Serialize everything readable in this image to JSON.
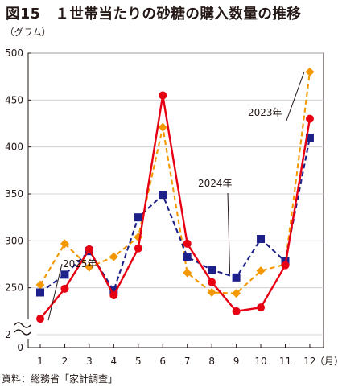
{
  "title": "図15　１世帯当たりの砂糖の購入数量の推移",
  "unit_label": "（グラム）",
  "source": "資料：総務省「家計調査」",
  "chart_data": {
    "type": "line",
    "title": "図15　１世帯当たりの砂糖の購入数量の推移",
    "ylabel": "（グラム）",
    "xlabel": "（月）",
    "x": [
      1,
      2,
      3,
      4,
      5,
      6,
      7,
      8,
      9,
      10,
      11,
      12
    ],
    "x_tick_labels": [
      "1",
      "2",
      "3",
      "4",
      "5",
      "6",
      "7",
      "8",
      "9",
      "10",
      "11",
      "12"
    ],
    "y_ticks": [
      0,
      200,
      250,
      300,
      350,
      400,
      450,
      500
    ],
    "y_tick_labels": [
      "0",
      "200",
      "250",
      "300",
      "350",
      "400",
      "450",
      "500"
    ],
    "ylim": [
      200,
      500
    ],
    "axis_break": true,
    "grid": "horizontal",
    "series": [
      {
        "name": "2023年",
        "values": [
          253,
          297,
          272,
          283,
          304,
          421,
          266,
          245,
          244,
          268,
          275,
          480
        ],
        "color": "#f39800",
        "marker": "diamond",
        "line": "dashed"
      },
      {
        "name": "2024年",
        "values": [
          245,
          264,
          289,
          247,
          325,
          349,
          283,
          269,
          261,
          302,
          278,
          410
        ],
        "color": "#1d2088",
        "marker": "square",
        "line": "dashed"
      },
      {
        "name": "2025年",
        "values": [
          217,
          249,
          291,
          242,
          292,
          455,
          297,
          256,
          225,
          229,
          274,
          430
        ],
        "color": "#e60012",
        "marker": "circle",
        "line": "solid"
      }
    ],
    "annotations": [
      {
        "text": "2023年",
        "series": "2023年",
        "x": 12
      },
      {
        "text": "2024年",
        "series": "2024年",
        "x": 9
      },
      {
        "text": "2025年",
        "series": "2025年",
        "x": 1
      }
    ]
  }
}
